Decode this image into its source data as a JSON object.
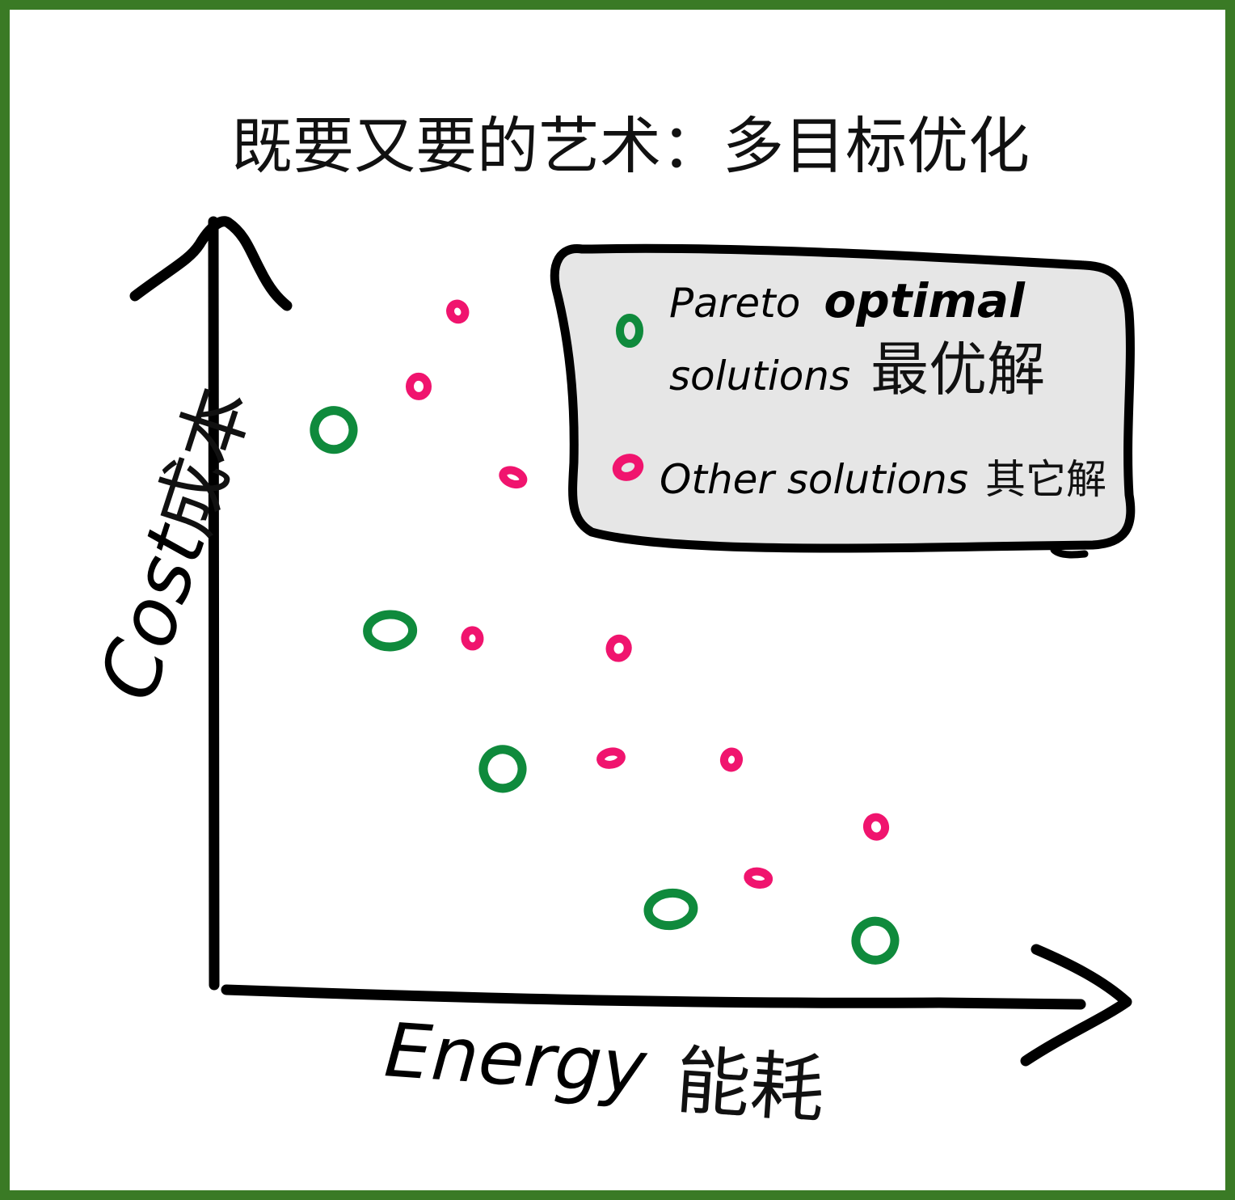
{
  "chart_data": {
    "type": "scatter",
    "title": "既要又要的艺术：多目标优化",
    "xlabel": "Energy",
    "xlabel_cn": "能耗",
    "ylabel": "Cost",
    "ylabel_cn": "成本",
    "xlim": [
      0,
      100
    ],
    "ylim": [
      0,
      100
    ],
    "grid": false,
    "legend_position": "top-right",
    "colors": {
      "pareto": "#0f8a3c",
      "other": "#f0146e",
      "frame": "#3a7a25",
      "legend_bg": "#e6e6e6"
    },
    "legend": {
      "pareto_line1_a": "Pareto",
      "pareto_line1_b": "optimal",
      "pareto_line2_a": "solutions",
      "pareto_line2_b": "最优解",
      "other_a": "Other solutions",
      "other_b": "其它解"
    },
    "series": [
      {
        "name": "Pareto optimal solutions",
        "marker": "hollow-circle",
        "points": [
          {
            "x": 13.8,
            "y": 72.7
          },
          {
            "x": 20.3,
            "y": 46.4
          },
          {
            "x": 33.3,
            "y": 28.3
          },
          {
            "x": 52.7,
            "y": 9.9
          },
          {
            "x": 76.3,
            "y": 5.8
          }
        ]
      },
      {
        "name": "Other solutions",
        "marker": "small-blob",
        "points": [
          {
            "x": 28.1,
            "y": 88.2
          },
          {
            "x": 23.6,
            "y": 78.4
          },
          {
            "x": 34.5,
            "y": 66.5
          },
          {
            "x": 29.8,
            "y": 45.4
          },
          {
            "x": 46.7,
            "y": 44.1
          },
          {
            "x": 45.8,
            "y": 29.7
          },
          {
            "x": 59.7,
            "y": 29.5
          },
          {
            "x": 76.4,
            "y": 20.7
          },
          {
            "x": 62.8,
            "y": 14.0
          }
        ]
      }
    ]
  }
}
